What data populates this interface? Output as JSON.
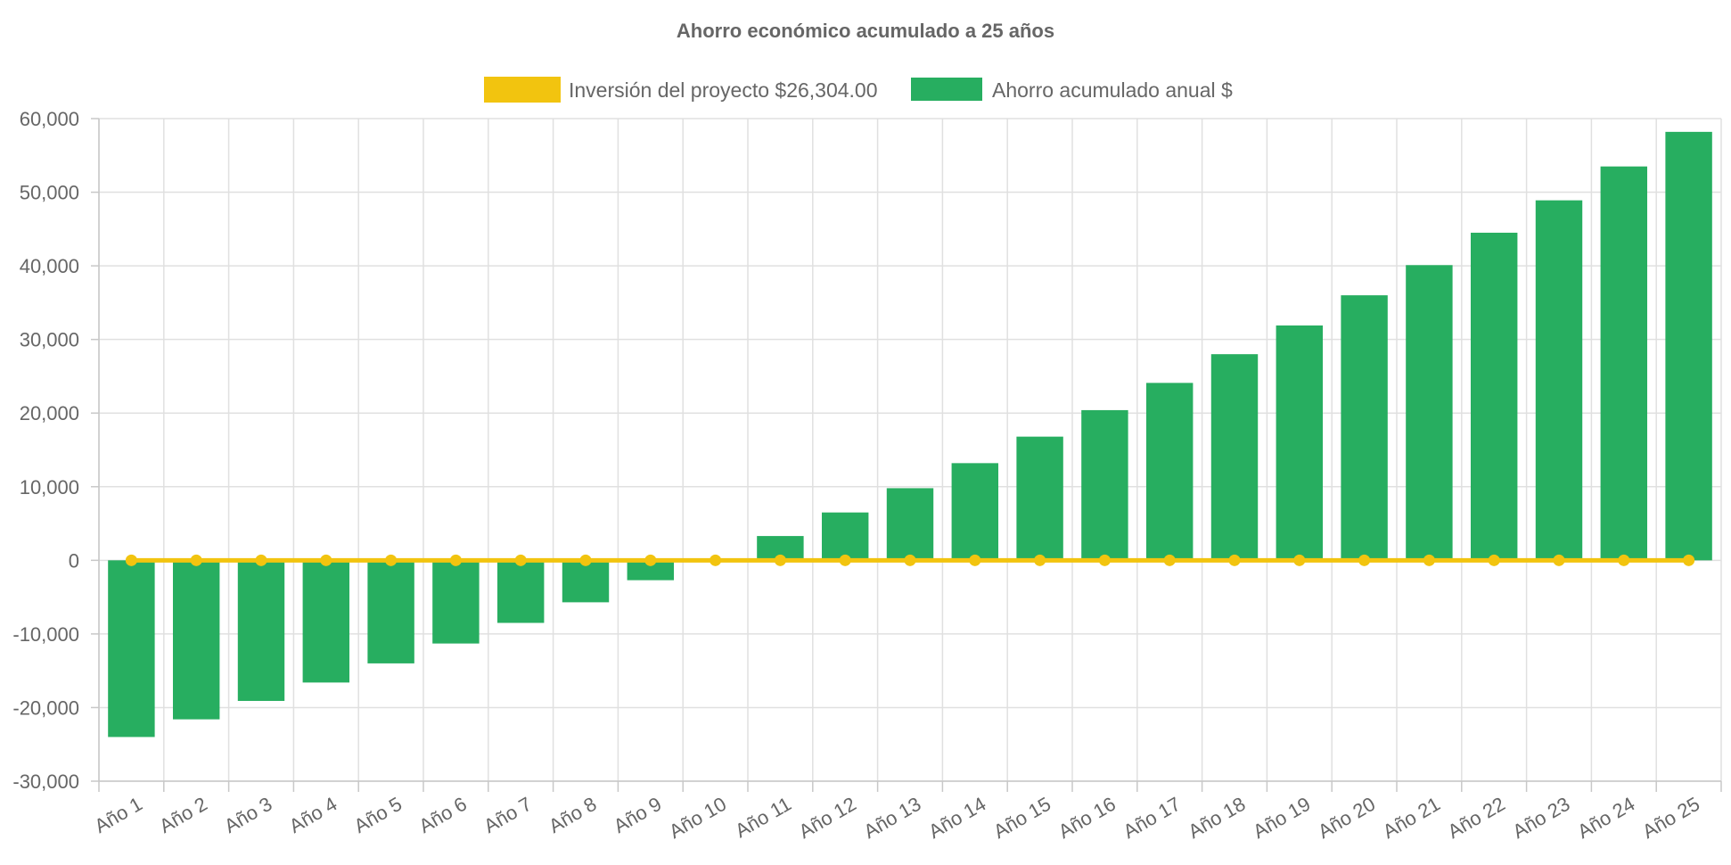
{
  "chart_data": {
    "type": "bar",
    "title": "Ahorro económico acumulado a 25 años",
    "categories": [
      "Año 1",
      "Año 2",
      "Año 3",
      "Año 4",
      "Año 5",
      "Año 6",
      "Año 7",
      "Año 8",
      "Año 9",
      "Año 10",
      "Año 11",
      "Año 12",
      "Año 13",
      "Año 14",
      "Año 15",
      "Año 16",
      "Año 17",
      "Año 18",
      "Año 19",
      "Año 20",
      "Año 21",
      "Año 22",
      "Año 23",
      "Año 24",
      "Año 25"
    ],
    "series": [
      {
        "name": "Inversión del proyecto $26,304.00",
        "kind": "line",
        "color": "#F2C40F",
        "values": [
          0,
          0,
          0,
          0,
          0,
          0,
          0,
          0,
          0,
          0,
          0,
          0,
          0,
          0,
          0,
          0,
          0,
          0,
          0,
          0,
          0,
          0,
          0,
          0,
          0
        ]
      },
      {
        "name": "Ahorro acumulado anual $",
        "kind": "bar",
        "color": "#27AE60",
        "values": [
          -24000,
          -21600,
          -19100,
          -16600,
          -14000,
          -11300,
          -8500,
          -5700,
          -2700,
          0,
          3300,
          6500,
          9800,
          13200,
          16800,
          20400,
          24100,
          28000,
          31900,
          36000,
          40100,
          44500,
          48900,
          53500,
          58200
        ]
      }
    ],
    "ylim": [
      -30000,
      60000
    ],
    "yticks": [
      "60,000",
      "50,000",
      "40,000",
      "30,000",
      "20,000",
      "10,000",
      "0",
      "-10,000",
      "-20,000",
      "-30,000"
    ],
    "ytick_values": [
      60000,
      50000,
      40000,
      30000,
      20000,
      10000,
      0,
      -10000,
      -20000,
      -30000
    ],
    "grid": true,
    "legend_position": "top-center"
  }
}
